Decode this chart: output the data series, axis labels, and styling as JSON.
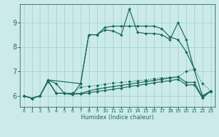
{
  "xlabel": "Humidex (Indice chaleur)",
  "bg_color": "#cceaea",
  "grid_color": "#99cccc",
  "line_color": "#1a6b5a",
  "xlim": [
    -0.5,
    23.5
  ],
  "ylim": [
    5.55,
    9.75
  ],
  "yticks": [
    6,
    7,
    8,
    9
  ],
  "xtick_labels": [
    "0",
    "1",
    "2",
    "3",
    "4",
    "5",
    "6",
    "7",
    "8",
    "9",
    "10",
    "11",
    "12",
    "13",
    "14",
    "15",
    "16",
    "17",
    "18",
    "19",
    "20",
    "21",
    "22",
    "23"
  ],
  "series": [
    {
      "x": [
        0,
        1,
        2,
        3,
        4,
        5,
        6,
        7,
        8,
        9,
        10,
        11,
        12,
        13,
        14,
        15,
        16,
        17,
        18,
        19,
        20,
        21,
        22,
        23
      ],
      "y": [
        6.0,
        5.9,
        6.0,
        6.65,
        6.5,
        6.1,
        6.05,
        6.5,
        8.5,
        8.5,
        8.7,
        8.65,
        8.5,
        9.55,
        8.6,
        8.55,
        8.55,
        8.5,
        8.3,
        9.0,
        8.3,
        7.05,
        6.0,
        6.2
      ],
      "style": "solid",
      "lw": 0.9
    },
    {
      "x": [
        3,
        7,
        8,
        9,
        10,
        11,
        12,
        13,
        14,
        15,
        16,
        17,
        18,
        19,
        20,
        21
      ],
      "y": [
        6.65,
        6.5,
        8.5,
        8.5,
        8.8,
        8.85,
        8.85,
        8.85,
        8.85,
        8.85,
        8.85,
        8.75,
        8.4,
        8.3,
        7.8,
        7.1
      ],
      "style": "solid",
      "lw": 0.9
    },
    {
      "x": [
        0,
        1,
        2,
        3,
        4,
        5,
        6,
        7,
        8,
        9,
        10,
        11,
        12,
        13,
        14,
        15,
        16,
        17,
        18,
        19,
        20,
        21,
        22,
        23
      ],
      "y": [
        6.0,
        5.9,
        6.0,
        6.65,
        6.1,
        6.1,
        6.1,
        6.35,
        6.4,
        6.42,
        6.48,
        6.52,
        6.55,
        6.58,
        6.62,
        6.65,
        6.7,
        6.73,
        6.75,
        6.78,
        7.0,
        7.1,
        6.5,
        6.2
      ],
      "style": "dotted",
      "lw": 0.9
    },
    {
      "x": [
        0,
        1,
        2,
        3,
        4,
        5,
        6,
        7,
        8,
        9,
        10,
        11,
        12,
        13,
        14,
        15,
        16,
        17,
        18,
        19,
        20,
        21,
        22,
        23
      ],
      "y": [
        6.0,
        5.9,
        6.0,
        6.6,
        6.1,
        6.1,
        6.1,
        6.1,
        6.2,
        6.28,
        6.33,
        6.38,
        6.43,
        6.48,
        6.53,
        6.58,
        6.63,
        6.68,
        6.73,
        6.78,
        6.55,
        6.55,
        5.95,
        6.2
      ],
      "style": "solid",
      "lw": 0.9
    },
    {
      "x": [
        0,
        1,
        2,
        3,
        4,
        5,
        6,
        7,
        8,
        9,
        10,
        11,
        12,
        13,
        14,
        15,
        16,
        17,
        18,
        19,
        20,
        21,
        22,
        23
      ],
      "y": [
        6.0,
        5.9,
        6.0,
        6.6,
        6.1,
        6.1,
        6.08,
        6.08,
        6.12,
        6.18,
        6.22,
        6.27,
        6.32,
        6.38,
        6.43,
        6.48,
        6.53,
        6.58,
        6.62,
        6.68,
        6.45,
        6.45,
        5.92,
        6.18
      ],
      "style": "solid",
      "lw": 0.9
    }
  ]
}
